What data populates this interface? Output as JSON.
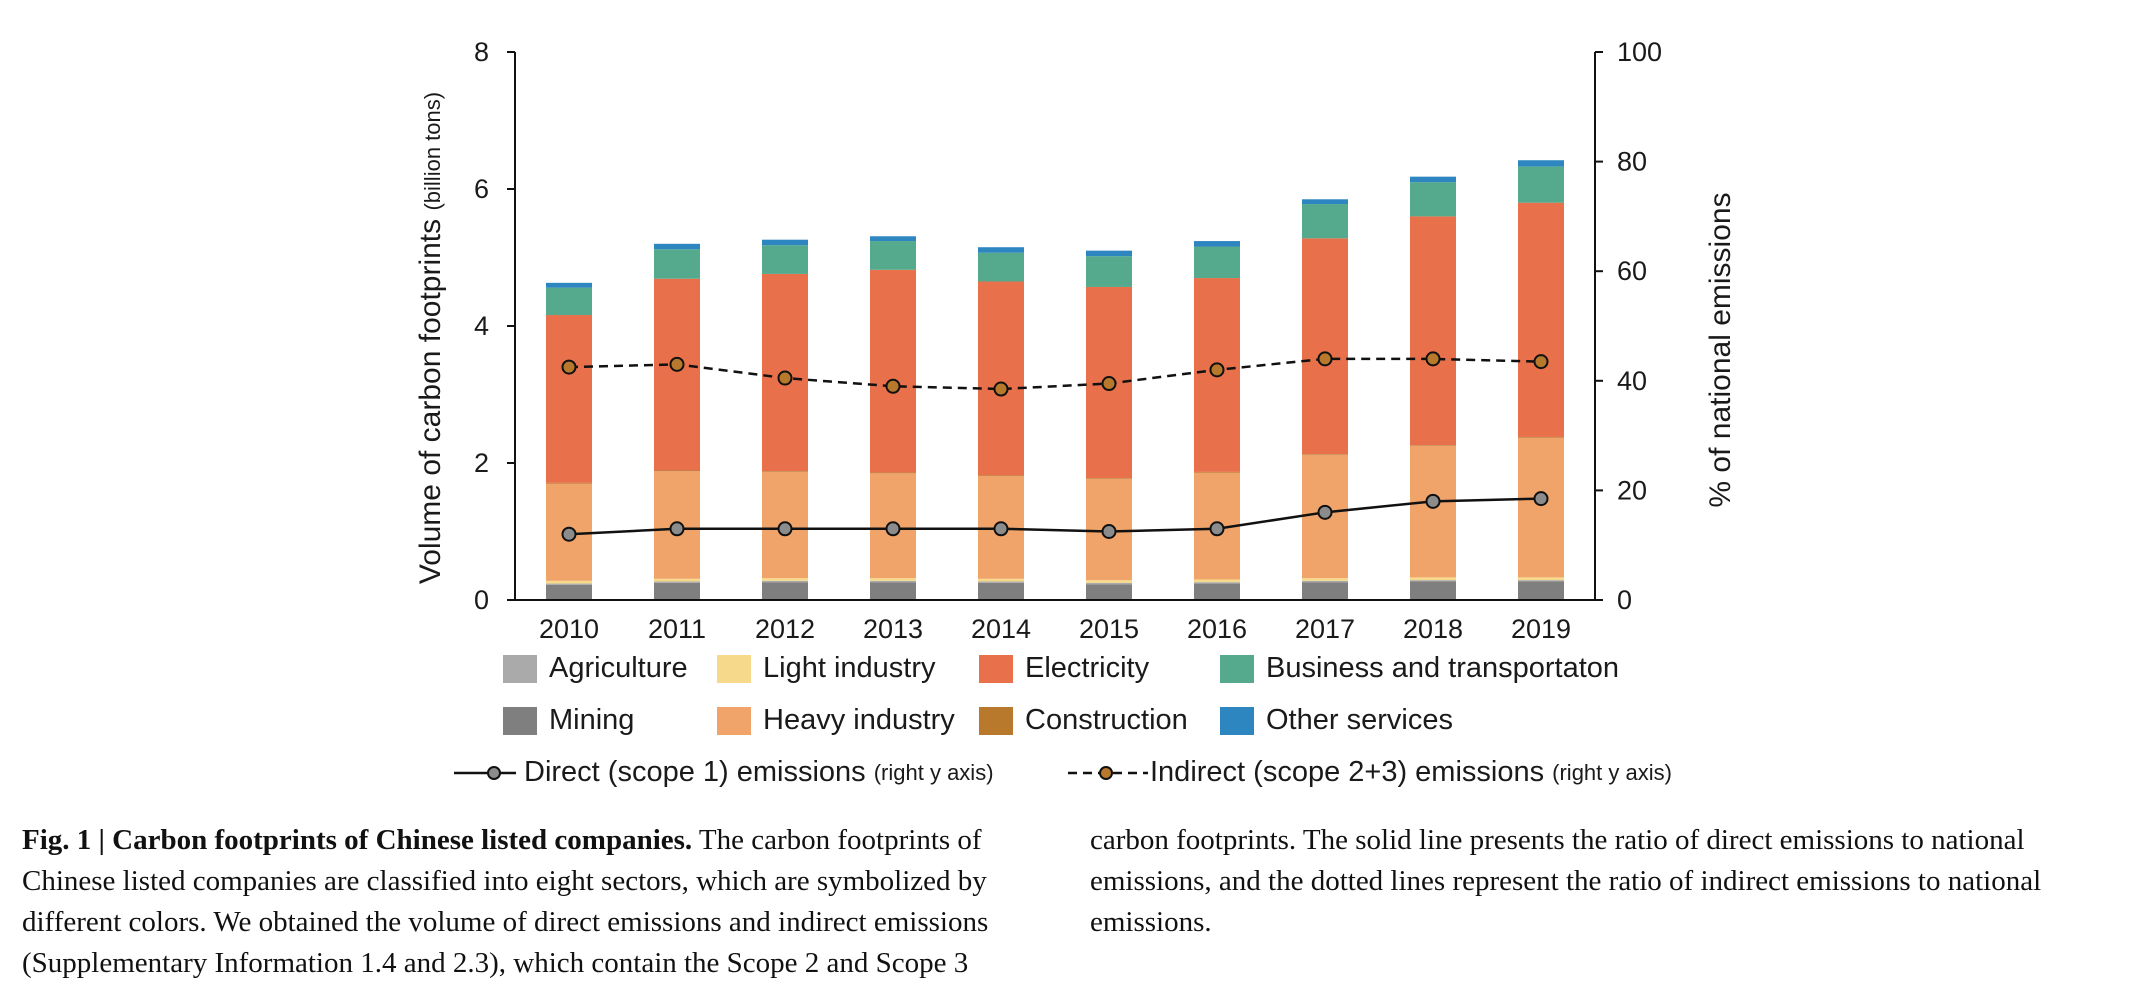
{
  "chart_data": {
    "type": "bar",
    "stacked": true,
    "categories": [
      "2010",
      "2011",
      "2012",
      "2013",
      "2014",
      "2015",
      "2016",
      "2017",
      "2018",
      "2019"
    ],
    "ylabel": "Volume of carbon footprints",
    "ylabel_unit": "(billion tons)",
    "ylim": [
      0,
      8
    ],
    "yticks": [
      0,
      2,
      4,
      6,
      8
    ],
    "y2label": "% of national emissions",
    "y2lim": [
      0,
      100
    ],
    "y2ticks": [
      0,
      20,
      40,
      60,
      80,
      100
    ],
    "series": [
      {
        "name": "Mining",
        "color": "#7f7f7f",
        "values": [
          0.22,
          0.25,
          0.26,
          0.26,
          0.25,
          0.23,
          0.24,
          0.26,
          0.27,
          0.27
        ]
      },
      {
        "name": "Agriculture",
        "color": "#aaaaaa",
        "values": [
          0.02,
          0.02,
          0.02,
          0.02,
          0.02,
          0.02,
          0.02,
          0.02,
          0.02,
          0.02
        ]
      },
      {
        "name": "Light industry",
        "color": "#f7d98b",
        "values": [
          0.04,
          0.04,
          0.04,
          0.04,
          0.04,
          0.04,
          0.04,
          0.04,
          0.04,
          0.04
        ]
      },
      {
        "name": "Heavy industry",
        "color": "#f0a46a",
        "values": [
          1.42,
          1.57,
          1.55,
          1.53,
          1.5,
          1.48,
          1.56,
          1.8,
          1.92,
          2.04
        ]
      },
      {
        "name": "Construction",
        "color": "#b8792c",
        "values": [
          0.01,
          0.01,
          0.01,
          0.01,
          0.01,
          0.01,
          0.01,
          0.01,
          0.01,
          0.01
        ]
      },
      {
        "name": "Electricity",
        "color": "#e8704b",
        "values": [
          2.45,
          2.8,
          2.88,
          2.96,
          2.83,
          2.79,
          2.83,
          3.15,
          3.34,
          3.42
        ]
      },
      {
        "name": "Business and transportaton",
        "color": "#55a98c",
        "values": [
          0.4,
          0.43,
          0.42,
          0.42,
          0.42,
          0.45,
          0.46,
          0.5,
          0.5,
          0.53
        ]
      },
      {
        "name": "Other services",
        "color": "#2e86c1",
        "values": [
          0.07,
          0.08,
          0.08,
          0.07,
          0.08,
          0.08,
          0.08,
          0.07,
          0.08,
          0.09
        ]
      }
    ],
    "lines": [
      {
        "name": "Direct (scope 1) emissions",
        "axis": "right",
        "style": "solid",
        "color": "#111111",
        "marker_fill": "#8c8c8c",
        "values": [
          12,
          13,
          13,
          13,
          13,
          12.5,
          13,
          16,
          18,
          18.5
        ]
      },
      {
        "name": "Indirect (scope 2+3) emissions",
        "axis": "right",
        "style": "dashed",
        "color": "#111111",
        "marker_fill": "#b8792c",
        "values": [
          42.5,
          43,
          40.5,
          39,
          38.5,
          39.5,
          42,
          44,
          44,
          43.5
        ]
      }
    ]
  },
  "legend": {
    "row1": [
      "Agriculture",
      "Light industry",
      "Electricity",
      "Business and transportaton"
    ],
    "row2": [
      "Mining",
      "Heavy industry",
      "Construction",
      "Other services"
    ],
    "line_direct": "Direct (scope 1) emissions",
    "line_indirect": "Indirect (scope 2+3) emissions",
    "axis_note": "(right y axis)"
  },
  "caption": {
    "label": "Fig. 1 | Carbon footprints of Chinese listed companies.",
    "left_lines": [
      " The carbon footprints of",
      "Chinese listed companies are classified into eight sectors, which are symbolized by",
      "different colors. We obtained the volume of direct emissions and indirect emissions",
      "(Supplementary Information 1.4 and 2.3), which contain the Scope 2 and Scope 3"
    ],
    "right_lines": [
      "carbon footprints. The solid line presents the ratio of direct emissions to national",
      "emissions, and the dotted lines represent the ratio of indirect emissions to national",
      "emissions."
    ]
  }
}
